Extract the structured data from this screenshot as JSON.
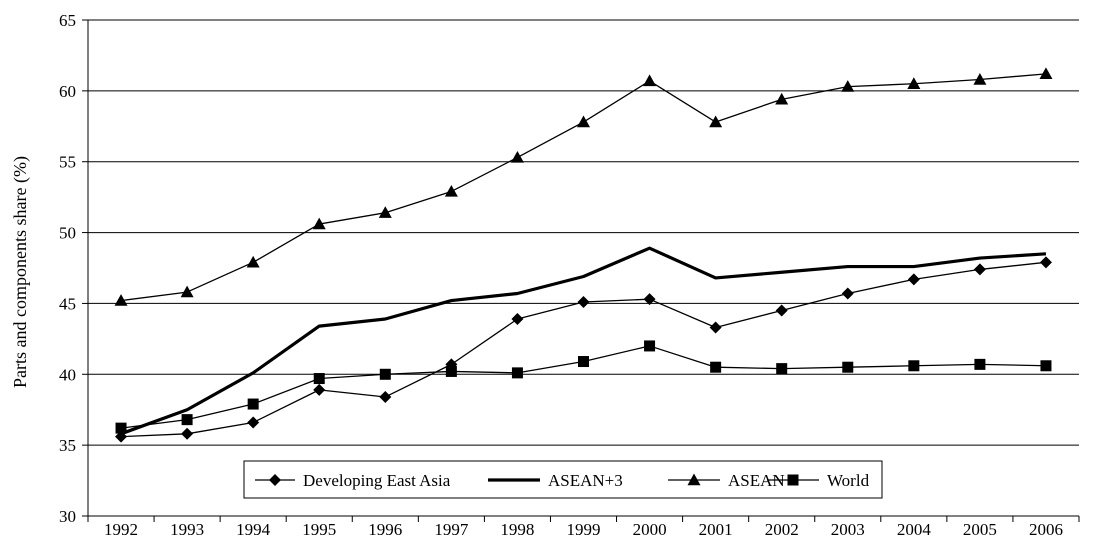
{
  "chart_data": {
    "type": "line",
    "title": "",
    "xlabel": "",
    "ylabel": "Parts and components share (%)",
    "x": [
      "1992",
      "1993",
      "1994",
      "1995",
      "1996",
      "1997",
      "1998",
      "1999",
      "2000",
      "2001",
      "2002",
      "2003",
      "2004",
      "2005",
      "2006"
    ],
    "ylim": [
      30,
      65
    ],
    "yticks": [
      30,
      35,
      40,
      45,
      50,
      55,
      60,
      65
    ],
    "grid": "horizontal",
    "legend_position": "bottom-center",
    "series": [
      {
        "name": "Developing East Asia",
        "marker": "diamond",
        "line_width": "thin",
        "values": [
          35.6,
          35.8,
          36.6,
          38.9,
          38.4,
          40.7,
          43.9,
          45.1,
          45.3,
          43.3,
          44.5,
          45.7,
          46.7,
          47.4,
          47.9
        ]
      },
      {
        "name": "ASEAN+3",
        "marker": "none",
        "line_width": "thick",
        "values": [
          35.8,
          37.5,
          40.1,
          43.4,
          43.9,
          45.2,
          45.7,
          46.9,
          48.9,
          46.8,
          47.2,
          47.6,
          47.6,
          48.2,
          48.5
        ]
      },
      {
        "name": "ASEAN",
        "marker": "triangle",
        "line_width": "thin",
        "values": [
          45.2,
          45.8,
          47.9,
          50.6,
          51.4,
          52.9,
          55.3,
          57.8,
          60.7,
          57.8,
          59.4,
          60.3,
          60.5,
          60.8,
          61.2
        ]
      },
      {
        "name": "World",
        "marker": "square",
        "line_width": "thin",
        "values": [
          36.2,
          36.8,
          37.9,
          39.7,
          40.0,
          40.2,
          40.1,
          40.9,
          42.0,
          40.5,
          40.4,
          40.5,
          40.6,
          40.7,
          40.6
        ]
      }
    ]
  }
}
